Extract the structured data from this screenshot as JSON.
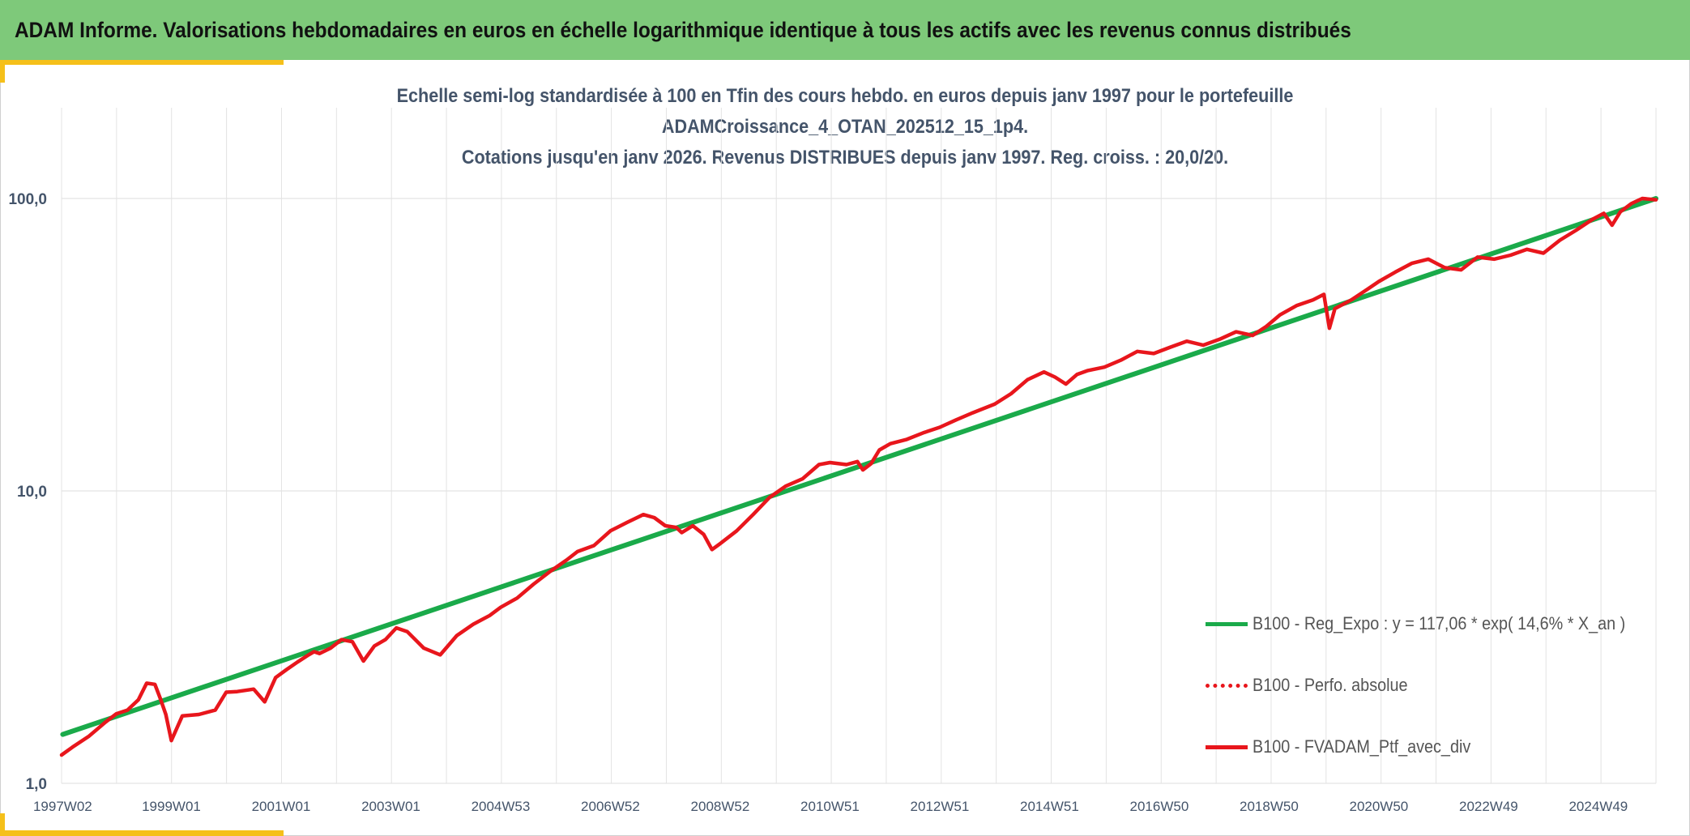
{
  "banner": {
    "title": "ADAM Informe. Valorisations hebdomadaires en euros en échelle logarithmique identique à tous les actifs avec les revenus connus distribués"
  },
  "colors": {
    "banner_bg": "#7ec97a",
    "accent_corner": "#f5c01a",
    "regression_line": "#1aaa4a",
    "portfolio_line": "#e8161c",
    "title_text": "#44546a",
    "grid": "#e3e3e3"
  },
  "chart_data": {
    "type": "line",
    "title": [
      "Echelle semi-log standardisée à 100 en Tfin des cours hebdo. en euros depuis janv 1997 pour le portefeuille",
      "ADAMCroissance_4_OTAN_202512_15_1p4.",
      "Cotations jusqu'en janv 2026. Revenus DISTRIBUES depuis janv 1997. Reg. croiss. : 20,0/20."
    ],
    "y_scale": "log",
    "ylim": [
      1,
      100
    ],
    "y_ticks": [
      "1,0",
      "10,0",
      "100,0"
    ],
    "x_range": [
      1997.0,
      2026.05
    ],
    "x_tick_labels": [
      "1997W02",
      "1999W01",
      "2001W01",
      "2003W01",
      "2004W53",
      "2006W52",
      "2008W52",
      "2010W51",
      "2012W51",
      "2014W51",
      "2016W50",
      "2018W50",
      "2020W50",
      "2022W49",
      "2024W49"
    ],
    "x_tick_years": [
      1997.02,
      1999.0,
      2001.0,
      2003.0,
      2005.0,
      2007.0,
      2009.0,
      2011.0,
      2013.0,
      2015.0,
      2017.0,
      2019.0,
      2021.0,
      2023.0,
      2025.0
    ],
    "grid": true,
    "legend_position": "bottom-right",
    "series": [
      {
        "name": "B100 - Reg_Expo : y = 117,06 * exp( 14,6% *  X_an )",
        "style": "solid",
        "color": "#1aaa4a",
        "x": [
          1997.02,
          2026.05
        ],
        "y": [
          1.47,
          100.0
        ]
      },
      {
        "name": "B100 - Perfo. absolue",
        "style": "dotted",
        "color": "#e8161c",
        "x": [],
        "y": []
      },
      {
        "name": "B100 - FVADAM_Ptf_avec_div",
        "style": "solid",
        "color": "#e8161c",
        "x": [
          1997.0,
          1997.2,
          1997.5,
          1997.8,
          1998.0,
          1998.2,
          1998.4,
          1998.55,
          1998.7,
          1998.8,
          1998.9,
          1999.0,
          1999.2,
          1999.5,
          1999.8,
          2000.0,
          2000.2,
          2000.5,
          2000.7,
          2000.9,
          2001.1,
          2001.3,
          2001.5,
          2001.6,
          2001.7,
          2001.9,
          2002.1,
          2002.3,
          2002.5,
          2002.7,
          2002.9,
          2003.1,
          2003.3,
          2003.6,
          2003.9,
          2004.2,
          2004.5,
          2004.8,
          2005.0,
          2005.3,
          2005.6,
          2005.9,
          2006.2,
          2006.4,
          2006.7,
          2007.0,
          2007.3,
          2007.6,
          2007.8,
          2008.0,
          2008.2,
          2008.3,
          2008.5,
          2008.7,
          2008.85,
          2009.0,
          2009.3,
          2009.6,
          2009.9,
          2010.2,
          2010.5,
          2010.8,
          2011.0,
          2011.3,
          2011.5,
          2011.6,
          2011.75,
          2011.9,
          2012.1,
          2012.4,
          2012.7,
          2013.0,
          2013.3,
          2013.6,
          2014.0,
          2014.3,
          2014.6,
          2014.9,
          2015.1,
          2015.3,
          2015.5,
          2015.7,
          2016.0,
          2016.3,
          2016.6,
          2016.9,
          2017.2,
          2017.5,
          2017.8,
          2018.1,
          2018.4,
          2018.7,
          2018.95,
          2019.2,
          2019.5,
          2019.8,
          2020.0,
          2020.1,
          2020.2,
          2020.5,
          2020.8,
          2021.0,
          2021.3,
          2021.6,
          2021.9,
          2022.2,
          2022.5,
          2022.8,
          2023.1,
          2023.4,
          2023.7,
          2024.0,
          2024.3,
          2024.6,
          2024.9,
          2025.1,
          2025.25,
          2025.4,
          2025.6,
          2025.8,
          2026.05
        ],
        "y": [
          1.25,
          1.33,
          1.45,
          1.62,
          1.73,
          1.78,
          1.93,
          2.2,
          2.18,
          1.95,
          1.72,
          1.4,
          1.7,
          1.72,
          1.78,
          2.05,
          2.06,
          2.1,
          1.9,
          2.3,
          2.45,
          2.6,
          2.75,
          2.82,
          2.78,
          2.9,
          3.1,
          3.05,
          2.62,
          2.95,
          3.1,
          3.4,
          3.3,
          2.9,
          2.75,
          3.2,
          3.5,
          3.75,
          4.0,
          4.3,
          4.8,
          5.3,
          5.8,
          6.2,
          6.5,
          7.3,
          7.8,
          8.3,
          8.1,
          7.6,
          7.5,
          7.2,
          7.6,
          7.1,
          6.3,
          6.6,
          7.3,
          8.3,
          9.5,
          10.4,
          11.0,
          12.3,
          12.5,
          12.3,
          12.6,
          11.8,
          12.4,
          13.8,
          14.5,
          15.0,
          15.8,
          16.5,
          17.5,
          18.5,
          19.8,
          21.5,
          24.0,
          25.5,
          24.5,
          23.2,
          25.0,
          25.8,
          26.5,
          28.0,
          30.0,
          29.5,
          31.0,
          32.5,
          31.5,
          33.0,
          35.0,
          34.0,
          36.5,
          40.0,
          43.0,
          45.0,
          47.0,
          36.0,
          42.0,
          45.0,
          49.0,
          52.0,
          56.0,
          60.0,
          62.0,
          58.0,
          57.0,
          63.0,
          62.0,
          64.0,
          67.0,
          65.0,
          72.0,
          78.0,
          85.0,
          89.0,
          81.0,
          90.0,
          96.0,
          100.0,
          99.0
        ]
      }
    ]
  }
}
